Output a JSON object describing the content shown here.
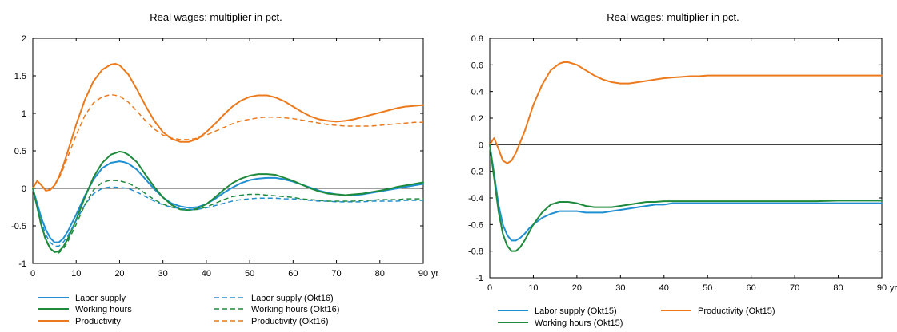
{
  "chart_data": [
    {
      "type": "line",
      "title": "Real wages: multiplier in pct.",
      "xlabel": "",
      "ylabel": "",
      "xlim": [
        0,
        90
      ],
      "ylim": [
        -1,
        2
      ],
      "x_ticks": [
        0,
        10,
        20,
        30,
        40,
        50,
        60,
        70,
        80,
        90
      ],
      "x_tick_labels": [
        "0",
        "10",
        "20",
        "30",
        "40",
        "50",
        "60",
        "70",
        "80",
        "90"
      ],
      "x_unit_label": "yr",
      "y_ticks": [
        -1,
        -0.5,
        0,
        0.5,
        1,
        1.5,
        2
      ],
      "y_tick_labels": [
        "-1",
        "-0.5",
        "0",
        "0.5",
        "1",
        "1.5",
        "2"
      ],
      "grid": false,
      "zero_line": true,
      "legend_position": "bottom",
      "series": [
        {
          "name": "Labor supply",
          "color": "#1f8fd1",
          "dash": "solid",
          "x": [
            0,
            1,
            2,
            3,
            4,
            5,
            6,
            7,
            8,
            10,
            12,
            14,
            16,
            18,
            20,
            21,
            22,
            24,
            26,
            28,
            30,
            32,
            34,
            36,
            38,
            40,
            42,
            44,
            46,
            48,
            50,
            52,
            54,
            56,
            58,
            60,
            62,
            64,
            66,
            68,
            70,
            72,
            74,
            76,
            78,
            80,
            82,
            84,
            86,
            88,
            90
          ],
          "y": [
            0,
            -0.2,
            -0.4,
            -0.55,
            -0.66,
            -0.72,
            -0.72,
            -0.67,
            -0.58,
            -0.35,
            -0.1,
            0.12,
            0.27,
            0.34,
            0.36,
            0.35,
            0.33,
            0.25,
            0.12,
            -0.01,
            -0.12,
            -0.2,
            -0.24,
            -0.26,
            -0.25,
            -0.21,
            -0.14,
            -0.06,
            0.01,
            0.07,
            0.11,
            0.13,
            0.14,
            0.14,
            0.12,
            0.09,
            0.05,
            0.01,
            -0.03,
            -0.06,
            -0.08,
            -0.09,
            -0.09,
            -0.08,
            -0.06,
            -0.04,
            -0.02,
            0.0,
            0.02,
            0.04,
            0.06
          ]
        },
        {
          "name": "Working hours",
          "color": "#1e8a3c",
          "dash": "solid",
          "x": [
            0,
            1,
            2,
            3,
            4,
            5,
            6,
            7,
            8,
            10,
            12,
            14,
            16,
            18,
            20,
            21,
            22,
            24,
            26,
            28,
            30,
            32,
            34,
            36,
            38,
            40,
            42,
            44,
            46,
            48,
            50,
            52,
            54,
            56,
            58,
            60,
            62,
            64,
            66,
            68,
            70,
            72,
            74,
            76,
            78,
            80,
            82,
            84,
            86,
            88,
            90
          ],
          "y": [
            0,
            -0.25,
            -0.5,
            -0.68,
            -0.8,
            -0.85,
            -0.84,
            -0.78,
            -0.68,
            -0.42,
            -0.12,
            0.15,
            0.34,
            0.45,
            0.49,
            0.48,
            0.45,
            0.35,
            0.18,
            0.02,
            -0.12,
            -0.22,
            -0.28,
            -0.29,
            -0.27,
            -0.21,
            -0.12,
            -0.02,
            0.07,
            0.13,
            0.17,
            0.19,
            0.19,
            0.18,
            0.14,
            0.1,
            0.05,
            0.0,
            -0.04,
            -0.07,
            -0.08,
            -0.09,
            -0.08,
            -0.07,
            -0.05,
            -0.03,
            -0.01,
            0.02,
            0.04,
            0.06,
            0.08
          ]
        },
        {
          "name": "Productivity",
          "color": "#ec7a1c",
          "dash": "solid",
          "x": [
            0,
            1,
            2,
            3,
            4,
            5,
            6,
            7,
            8,
            10,
            12,
            14,
            16,
            18,
            19,
            20,
            22,
            24,
            26,
            28,
            30,
            32,
            34,
            36,
            38,
            40,
            42,
            44,
            46,
            48,
            50,
            52,
            54,
            56,
            58,
            60,
            62,
            64,
            66,
            68,
            70,
            72,
            74,
            76,
            78,
            80,
            82,
            84,
            86,
            88,
            90
          ],
          "y": [
            0,
            0.1,
            0.04,
            -0.03,
            -0.02,
            0.04,
            0.15,
            0.3,
            0.48,
            0.85,
            1.18,
            1.43,
            1.58,
            1.65,
            1.66,
            1.64,
            1.52,
            1.32,
            1.1,
            0.9,
            0.75,
            0.66,
            0.62,
            0.62,
            0.66,
            0.75,
            0.86,
            0.98,
            1.09,
            1.17,
            1.22,
            1.24,
            1.24,
            1.21,
            1.16,
            1.09,
            1.02,
            0.96,
            0.92,
            0.9,
            0.89,
            0.9,
            0.92,
            0.95,
            0.98,
            1.01,
            1.04,
            1.07,
            1.09,
            1.1,
            1.11
          ]
        },
        {
          "name": "Labor supply (Okt16)",
          "color": "#1f8fd1",
          "dash": "dashed",
          "x": [
            0,
            1,
            2,
            3,
            4,
            5,
            6,
            7,
            8,
            10,
            12,
            14,
            16,
            18,
            20,
            22,
            24,
            26,
            28,
            30,
            32,
            34,
            36,
            38,
            40,
            42,
            44,
            46,
            48,
            50,
            52,
            54,
            56,
            58,
            60,
            62,
            64,
            66,
            68,
            70,
            72,
            74,
            76,
            78,
            80,
            82,
            84,
            86,
            88,
            90
          ],
          "y": [
            0,
            -0.22,
            -0.45,
            -0.62,
            -0.72,
            -0.77,
            -0.77,
            -0.72,
            -0.64,
            -0.43,
            -0.22,
            -0.07,
            0.0,
            0.02,
            0.01,
            0.0,
            -0.05,
            -0.11,
            -0.17,
            -0.22,
            -0.25,
            -0.27,
            -0.28,
            -0.28,
            -0.26,
            -0.23,
            -0.2,
            -0.17,
            -0.15,
            -0.14,
            -0.13,
            -0.13,
            -0.13,
            -0.14,
            -0.14,
            -0.15,
            -0.16,
            -0.17,
            -0.17,
            -0.18,
            -0.18,
            -0.18,
            -0.18,
            -0.17,
            -0.17,
            -0.17,
            -0.17,
            -0.16,
            -0.16,
            -0.16
          ]
        },
        {
          "name": "Working hours (Okt16)",
          "color": "#1e8a3c",
          "dash": "dashed",
          "x": [
            0,
            1,
            2,
            3,
            4,
            5,
            6,
            7,
            8,
            10,
            12,
            14,
            16,
            18,
            20,
            22,
            24,
            26,
            28,
            30,
            32,
            34,
            36,
            38,
            40,
            42,
            44,
            46,
            48,
            50,
            52,
            54,
            56,
            58,
            60,
            62,
            64,
            66,
            68,
            70,
            72,
            74,
            76,
            78,
            80,
            82,
            84,
            86,
            88,
            90
          ],
          "y": [
            0,
            -0.25,
            -0.52,
            -0.7,
            -0.8,
            -0.85,
            -0.86,
            -0.81,
            -0.72,
            -0.48,
            -0.22,
            -0.02,
            0.08,
            0.11,
            0.1,
            0.07,
            0.01,
            -0.07,
            -0.15,
            -0.21,
            -0.25,
            -0.28,
            -0.29,
            -0.28,
            -0.25,
            -0.2,
            -0.15,
            -0.11,
            -0.09,
            -0.08,
            -0.08,
            -0.09,
            -0.1,
            -0.11,
            -0.12,
            -0.14,
            -0.15,
            -0.16,
            -0.17,
            -0.17,
            -0.17,
            -0.17,
            -0.16,
            -0.16,
            -0.15,
            -0.15,
            -0.15,
            -0.14,
            -0.14,
            -0.14
          ]
        },
        {
          "name": "Productivity (Okt16)",
          "color": "#ec7a1c",
          "dash": "dashed",
          "x": [
            0,
            1,
            2,
            3,
            4,
            5,
            6,
            7,
            8,
            10,
            12,
            14,
            16,
            18,
            20,
            22,
            24,
            26,
            28,
            30,
            32,
            34,
            36,
            38,
            40,
            42,
            44,
            46,
            48,
            50,
            52,
            54,
            56,
            58,
            60,
            62,
            64,
            66,
            68,
            70,
            72,
            74,
            76,
            78,
            80,
            82,
            84,
            86,
            88,
            90
          ],
          "y": [
            0,
            0.1,
            0.04,
            -0.02,
            -0.01,
            0.04,
            0.13,
            0.26,
            0.41,
            0.71,
            0.97,
            1.14,
            1.22,
            1.25,
            1.23,
            1.15,
            1.03,
            0.9,
            0.79,
            0.71,
            0.67,
            0.65,
            0.65,
            0.67,
            0.71,
            0.76,
            0.81,
            0.86,
            0.9,
            0.92,
            0.94,
            0.95,
            0.95,
            0.94,
            0.93,
            0.91,
            0.89,
            0.87,
            0.85,
            0.84,
            0.83,
            0.83,
            0.83,
            0.83,
            0.84,
            0.85,
            0.86,
            0.87,
            0.88,
            0.88
          ]
        }
      ]
    },
    {
      "type": "line",
      "title": "Real wages: multiplier in pct.",
      "xlabel": "",
      "ylabel": "",
      "xlim": [
        0,
        90
      ],
      "ylim": [
        -1,
        0.8
      ],
      "x_ticks": [
        0,
        10,
        20,
        30,
        40,
        50,
        60,
        70,
        80,
        90
      ],
      "x_tick_labels": [
        "0",
        "10",
        "20",
        "30",
        "40",
        "50",
        "60",
        "70",
        "80",
        "90"
      ],
      "x_unit_label": "yr",
      "y_ticks": [
        -1,
        -0.8,
        -0.6,
        -0.4,
        -0.2,
        0,
        0.2,
        0.4,
        0.6,
        0.8
      ],
      "y_tick_labels": [
        "-1",
        "-0.8",
        "-0.6",
        "-0.4",
        "-0.2",
        "0",
        "0.2",
        "0.4",
        "0.6",
        "0.8"
      ],
      "grid": false,
      "zero_line": true,
      "legend_position": "bottom",
      "series": [
        {
          "name": "Labor supply (Okt15)",
          "color": "#1f8fd1",
          "dash": "solid",
          "x": [
            0,
            1,
            2,
            3,
            4,
            5,
            6,
            7,
            8,
            9,
            10,
            12,
            14,
            16,
            18,
            20,
            22,
            24,
            26,
            28,
            30,
            32,
            34,
            36,
            38,
            40,
            42,
            44,
            46,
            48,
            50,
            55,
            60,
            65,
            70,
            75,
            80,
            85,
            90
          ],
          "y": [
            0,
            -0.22,
            -0.45,
            -0.6,
            -0.68,
            -0.72,
            -0.72,
            -0.7,
            -0.67,
            -0.63,
            -0.6,
            -0.55,
            -0.52,
            -0.5,
            -0.5,
            -0.5,
            -0.51,
            -0.51,
            -0.51,
            -0.5,
            -0.49,
            -0.48,
            -0.47,
            -0.46,
            -0.45,
            -0.45,
            -0.44,
            -0.44,
            -0.44,
            -0.44,
            -0.44,
            -0.44,
            -0.44,
            -0.44,
            -0.44,
            -0.44,
            -0.44,
            -0.44,
            -0.44
          ]
        },
        {
          "name": "Productivity (Okt15)",
          "color": "#ec7a1c",
          "dash": "solid",
          "x": [
            0,
            1,
            2,
            3,
            4,
            5,
            6,
            7,
            8,
            9,
            10,
            12,
            14,
            16,
            17,
            18,
            20,
            22,
            24,
            26,
            28,
            30,
            32,
            34,
            36,
            38,
            40,
            42,
            44,
            46,
            48,
            50,
            55,
            60,
            65,
            70,
            75,
            80,
            85,
            90
          ],
          "y": [
            0,
            0.05,
            -0.03,
            -0.12,
            -0.14,
            -0.12,
            -0.06,
            0.02,
            0.1,
            0.2,
            0.3,
            0.45,
            0.56,
            0.61,
            0.62,
            0.62,
            0.6,
            0.56,
            0.52,
            0.49,
            0.47,
            0.46,
            0.46,
            0.47,
            0.48,
            0.49,
            0.5,
            0.505,
            0.51,
            0.515,
            0.515,
            0.52,
            0.52,
            0.52,
            0.52,
            0.52,
            0.52,
            0.52,
            0.52,
            0.52
          ]
        },
        {
          "name": "Working hours (Okt15)",
          "color": "#1e8a3c",
          "dash": "solid",
          "x": [
            0,
            1,
            2,
            3,
            4,
            5,
            6,
            7,
            8,
            9,
            10,
            12,
            14,
            16,
            18,
            20,
            22,
            24,
            26,
            28,
            30,
            32,
            34,
            36,
            38,
            40,
            42,
            44,
            46,
            48,
            50,
            55,
            60,
            65,
            70,
            75,
            80,
            85,
            90
          ],
          "y": [
            0,
            -0.25,
            -0.5,
            -0.67,
            -0.76,
            -0.8,
            -0.8,
            -0.77,
            -0.72,
            -0.66,
            -0.6,
            -0.51,
            -0.45,
            -0.43,
            -0.43,
            -0.44,
            -0.46,
            -0.47,
            -0.47,
            -0.47,
            -0.46,
            -0.45,
            -0.44,
            -0.43,
            -0.43,
            -0.425,
            -0.425,
            -0.425,
            -0.425,
            -0.425,
            -0.425,
            -0.425,
            -0.425,
            -0.425,
            -0.425,
            -0.425,
            -0.42,
            -0.42,
            -0.42
          ]
        }
      ]
    }
  ]
}
